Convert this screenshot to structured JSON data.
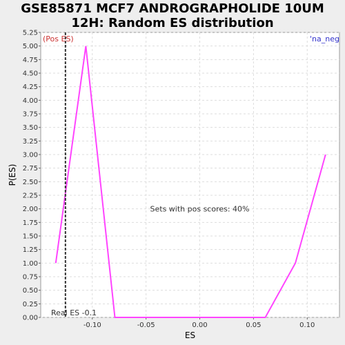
{
  "chart_data": {
    "type": "line",
    "title_lines": [
      "GSE85871 MCF7 ANDROGRAPHOLIDE 10UM",
      "12H: Random ES distribution"
    ],
    "xlabel": "ES",
    "ylabel": "P(ES)",
    "xlim": [
      -0.148,
      0.13
    ],
    "ylim": [
      0,
      5.25
    ],
    "grid": true,
    "xticks": [
      -0.1,
      -0.05,
      0.0,
      0.05,
      0.1
    ],
    "xtick_labels": [
      "-0.10",
      "-0.05",
      "0.00",
      "0.05",
      "0.10"
    ],
    "yticks": [
      0,
      0.25,
      0.5,
      0.75,
      1.0,
      1.25,
      1.5,
      1.75,
      2.0,
      2.25,
      2.5,
      2.75,
      3.0,
      3.25,
      3.5,
      3.75,
      4.0,
      4.25,
      4.5,
      4.75,
      5.0,
      5.25
    ],
    "ytick_labels": [
      "0.00",
      "0.25",
      "0.50",
      "0.75",
      "1.00",
      "1.25",
      "1.50",
      "1.75",
      "2.00",
      "2.25",
      "2.50",
      "2.75",
      "3.00",
      "3.25",
      "3.50",
      "3.75",
      "4.00",
      "4.25",
      "4.50",
      "4.75",
      "5.00",
      "5.25"
    ],
    "series": [
      {
        "color": "#ff44ff",
        "x": [
          -0.134,
          -0.106,
          -0.079,
          0.061,
          0.089,
          0.117
        ],
        "y": [
          1.0,
          5.0,
          0.0,
          0.0,
          1.0,
          3.0
        ]
      }
    ],
    "real_es": {
      "value": -0.125,
      "label": "Real ES -0.1",
      "color": "#333333"
    },
    "annotations": {
      "pos_es": {
        "text": "(Pos ES)",
        "color": "#cc3333"
      },
      "na_neg": {
        "text": "'na_neg",
        "color": "#3333cc"
      },
      "sets_pos": {
        "text": "Sets with pos scores: 40%",
        "color": "#333333"
      }
    }
  }
}
